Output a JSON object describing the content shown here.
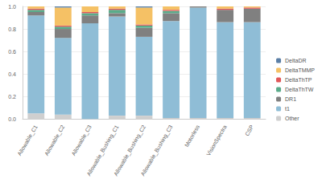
{
  "chart_data": {
    "type": "bar",
    "stacked": true,
    "grid": true,
    "legend": "right",
    "categories": [
      "Allowable_C1",
      "Allowable_C2",
      "Allowable_C3",
      "Allowable_Bushing_C1",
      "Allowable_Bushing_C2",
      "Allowable_Bushing_C3",
      "Motorless",
      "VisionSpectra",
      "CSP"
    ],
    "ylim": [
      0,
      1
    ],
    "yticks": [
      {
        "value": 0,
        "label": "0.0"
      },
      0.2,
      0.4,
      0.6,
      0.8,
      {
        "value": 1,
        "label": "1.0"
      }
    ],
    "series": [
      {
        "name": "DeltaDR",
        "color": "#5b7fa6",
        "values": [
          0,
          0.01,
          0,
          0,
          0.01,
          0,
          0,
          0,
          0
        ]
      },
      {
        "name": "DeltaTMMP",
        "color": "#f5c165",
        "values": [
          0.02,
          0.16,
          0.05,
          0.02,
          0.15,
          0.03,
          0,
          0.02,
          0.01
        ]
      },
      {
        "name": "DeltaThTP",
        "color": "#e15759",
        "values": [
          0.01,
          0.01,
          0.01,
          0.01,
          0.01,
          0.01,
          0,
          0.01,
          0.01
        ]
      },
      {
        "name": "DeltaThTW",
        "color": "#5aab8a",
        "values": [
          0.02,
          0.02,
          0.02,
          0.03,
          0.02,
          0.02,
          0,
          0,
          0
        ]
      },
      {
        "name": "DR1",
        "color": "#808080",
        "values": [
          0.03,
          0.08,
          0.07,
          0.03,
          0.08,
          0.07,
          0.01,
          0.11,
          0.12
        ]
      },
      {
        "name": "t1",
        "color": "#8fbdd6",
        "values": [
          0.87,
          0.68,
          0.85,
          0.88,
          0.7,
          0.86,
          0.98,
          0.85,
          0.85
        ]
      },
      {
        "name": "Other",
        "color": "#cfcfcf",
        "values": [
          0.05,
          0.04,
          0,
          0.03,
          0.03,
          0.01,
          0.01,
          0.01,
          0.01
        ]
      }
    ]
  }
}
